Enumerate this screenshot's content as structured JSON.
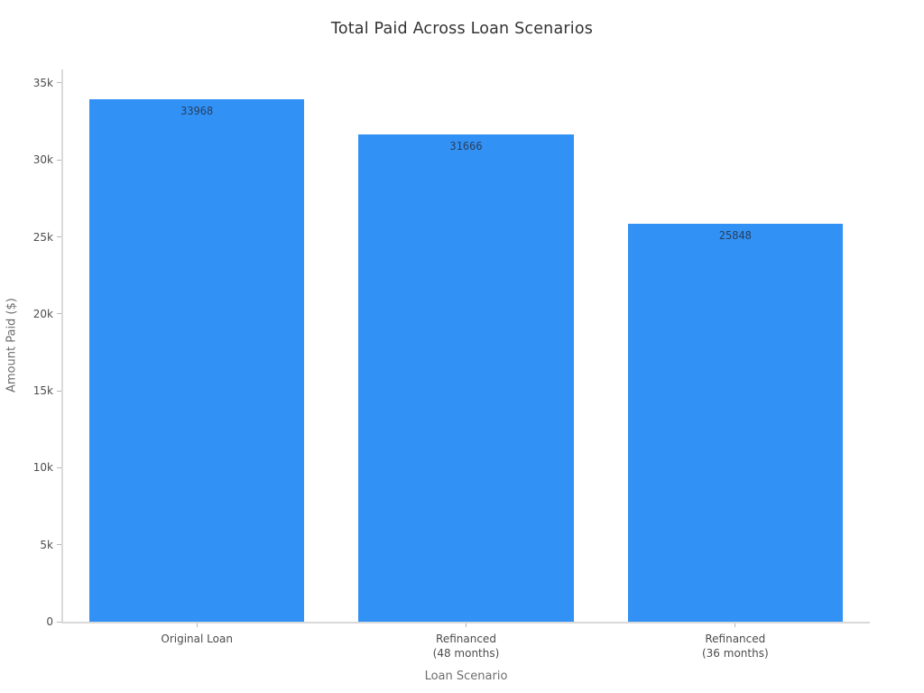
{
  "chart_data": {
    "type": "bar",
    "title": "Total Paid Across Loan Scenarios",
    "xlabel": "Loan Scenario",
    "ylabel": "Amount Paid ($)",
    "categories": [
      "Original Loan",
      "Refinanced\n(48 months)",
      "Refinanced\n(36 months)"
    ],
    "values": [
      33968,
      31666,
      25848
    ],
    "bar_labels": [
      "33968",
      "31666",
      "25848"
    ],
    "ylim": [
      0,
      35878
    ],
    "yticks": [
      {
        "value": 0,
        "label": "0"
      },
      {
        "value": 5000,
        "label": "5k"
      },
      {
        "value": 10000,
        "label": "10k"
      },
      {
        "value": 15000,
        "label": "15k"
      },
      {
        "value": 20000,
        "label": "20k"
      },
      {
        "value": 25000,
        "label": "25k"
      },
      {
        "value": 30000,
        "label": "30k"
      },
      {
        "value": 35000,
        "label": "35k"
      }
    ],
    "grid": false,
    "legend_position": "none",
    "bar_color": "#3191f5",
    "bar_width_fraction": 0.8
  }
}
